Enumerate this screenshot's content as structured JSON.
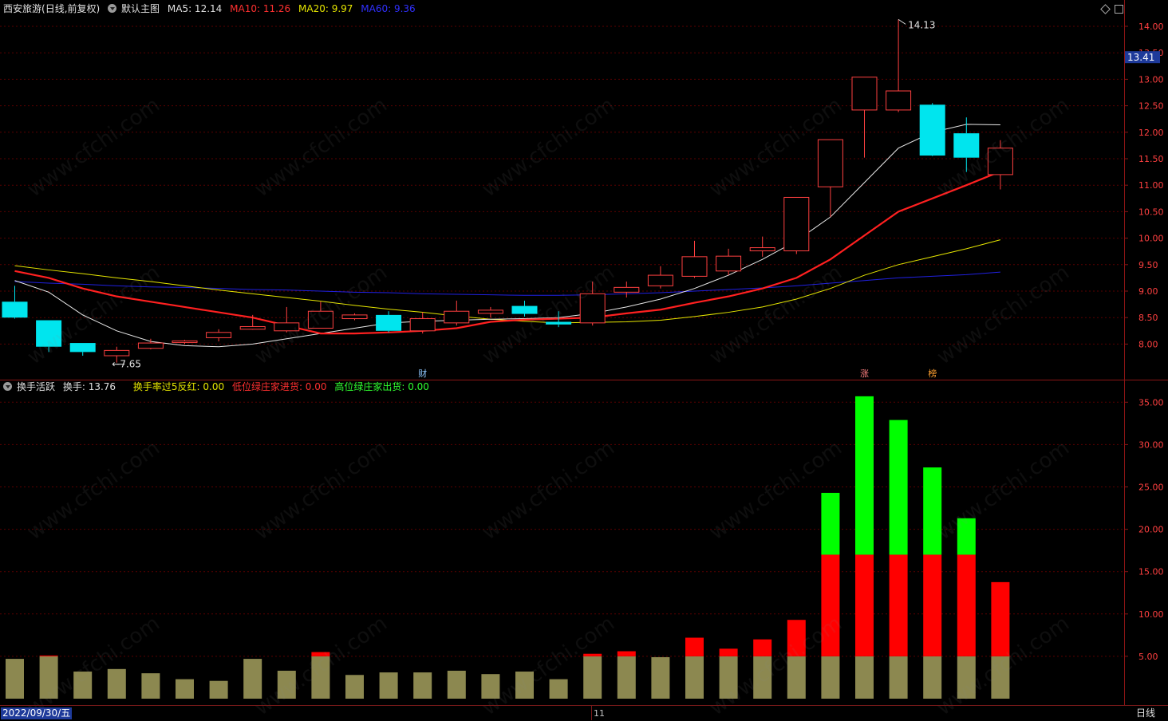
{
  "main_header": {
    "stock_name": "西安旅游",
    "period_info": "(日线,前复权)",
    "template_label": "默认主图",
    "ma5": "MA5: 12.14",
    "ma10": "MA10: 11.26",
    "ma20": "MA20: 9.97",
    "ma60": "MA60: 9.36"
  },
  "indicator_header": {
    "indicator_name": "换手活跃",
    "turnover": "换手: 13.76",
    "line1": "换手率过5反红: 0.00",
    "line2": "低位绿庄家进货: 0.00",
    "line3": "高位绿庄家出货: 0.00"
  },
  "colors": {
    "background": "#000000",
    "grid": "#5a0000",
    "axis": "#8a1515",
    "up_candle": "#ff4040",
    "down_candle": "#00e5ee",
    "ma5": "#e8e8e8",
    "ma10": "#ff2020",
    "ma20": "#e6e600",
    "ma60": "#2020e0",
    "vol_base": "#8c8850",
    "vol_red": "#ff0000",
    "vol_green": "#00ff00",
    "price_badge_bg": "#1e3a9a"
  },
  "price_axis": {
    "ticks": [
      "14.00",
      "13.50",
      "13.00",
      "12.50",
      "12.00",
      "11.50",
      "11.00",
      "10.50",
      "10.00",
      "9.50",
      "9.00",
      "8.50",
      "8.00"
    ],
    "current_price": "13.41",
    "high_label": "14.13",
    "low_label": "7.65"
  },
  "volume_axis": {
    "ticks": [
      "35.00",
      "30.00",
      "25.00",
      "20.00",
      "15.00",
      "10.00",
      "5.00"
    ]
  },
  "event_markers": [
    "财",
    "涨",
    "榜"
  ],
  "bottom_bar": {
    "date": "2022/09/30/五",
    "month": "11",
    "period": "日线"
  },
  "watermark": "www.cfchi.com",
  "chart_data": [
    {
      "type": "candlestick",
      "title": "西安旅游 (日线,前复权)",
      "y_range": [
        7.3,
        14.35
      ],
      "candles": [
        {
          "o": 8.8,
          "c": 8.5,
          "h": 9.1,
          "l": 8.48
        },
        {
          "o": 8.45,
          "c": 7.95,
          "h": 8.45,
          "l": 7.85
        },
        {
          "o": 8.02,
          "c": 7.85,
          "h": 8.02,
          "l": 7.78
        },
        {
          "o": 7.78,
          "c": 7.88,
          "h": 7.95,
          "l": 7.65
        },
        {
          "o": 7.92,
          "c": 8.02,
          "h": 8.1,
          "l": 7.9
        },
        {
          "o": 8.03,
          "c": 8.06,
          "h": 8.08,
          "l": 8.0
        },
        {
          "o": 8.12,
          "c": 8.22,
          "h": 8.28,
          "l": 8.05
        },
        {
          "o": 8.28,
          "c": 8.33,
          "h": 8.55,
          "l": 8.27
        },
        {
          "o": 8.25,
          "c": 8.4,
          "h": 8.7,
          "l": 8.22
        },
        {
          "o": 8.3,
          "c": 8.62,
          "h": 8.8,
          "l": 8.3
        },
        {
          "o": 8.48,
          "c": 8.55,
          "h": 8.58,
          "l": 8.45
        },
        {
          "o": 8.55,
          "c": 8.25,
          "h": 8.62,
          "l": 8.22
        },
        {
          "o": 8.25,
          "c": 8.48,
          "h": 8.6,
          "l": 8.2
        },
        {
          "o": 8.4,
          "c": 8.62,
          "h": 8.82,
          "l": 8.35
        },
        {
          "o": 8.58,
          "c": 8.64,
          "h": 8.7,
          "l": 8.5
        },
        {
          "o": 8.72,
          "c": 8.57,
          "h": 8.82,
          "l": 8.52
        },
        {
          "o": 8.42,
          "c": 8.37,
          "h": 8.62,
          "l": 8.32
        },
        {
          "o": 8.4,
          "c": 8.95,
          "h": 9.18,
          "l": 8.35
        },
        {
          "o": 8.98,
          "c": 9.07,
          "h": 9.18,
          "l": 8.88
        },
        {
          "o": 9.1,
          "c": 9.3,
          "h": 9.47,
          "l": 9.05
        },
        {
          "o": 9.28,
          "c": 9.65,
          "h": 9.95,
          "l": 9.25
        },
        {
          "o": 9.38,
          "c": 9.66,
          "h": 9.8,
          "l": 9.3
        },
        {
          "o": 9.76,
          "c": 9.82,
          "h": 10.03,
          "l": 9.65
        },
        {
          "o": 9.76,
          "c": 10.77,
          "h": 10.77,
          "l": 9.7
        },
        {
          "o": 10.97,
          "c": 11.86,
          "h": 11.86,
          "l": 10.4
        },
        {
          "o": 12.42,
          "c": 13.04,
          "h": 13.04,
          "l": 11.52
        },
        {
          "o": 12.42,
          "c": 12.78,
          "h": 14.13,
          "l": 12.38
        },
        {
          "o": 12.52,
          "c": 11.56,
          "h": 12.55,
          "l": 11.55
        },
        {
          "o": 11.98,
          "c": 11.52,
          "h": 12.28,
          "l": 11.25
        },
        {
          "o": 11.2,
          "c": 11.7,
          "h": 11.85,
          "l": 10.92
        }
      ],
      "ma5": [
        9.2,
        8.98,
        8.55,
        8.25,
        8.05,
        7.97,
        7.95,
        8.0,
        8.1,
        8.2,
        8.3,
        8.4,
        8.43,
        8.45,
        8.47,
        8.48,
        8.5,
        8.58,
        8.7,
        8.85,
        9.05,
        9.3,
        9.6,
        9.95,
        10.4,
        11.05,
        11.7,
        12.0,
        12.15,
        12.14
      ],
      "ma10": [
        9.38,
        9.25,
        9.05,
        8.9,
        8.8,
        8.7,
        8.6,
        8.5,
        8.35,
        8.2,
        8.2,
        8.22,
        8.25,
        8.3,
        8.42,
        8.46,
        8.48,
        8.5,
        8.58,
        8.65,
        8.78,
        8.9,
        9.05,
        9.25,
        9.6,
        10.05,
        10.5,
        10.75,
        11.0,
        11.26
      ],
      "ma20": [
        9.48,
        9.4,
        9.33,
        9.25,
        9.18,
        9.1,
        9.02,
        8.95,
        8.88,
        8.81,
        8.73,
        8.66,
        8.6,
        8.53,
        8.47,
        8.43,
        8.4,
        8.41,
        8.42,
        8.45,
        8.52,
        8.6,
        8.7,
        8.85,
        9.05,
        9.3,
        9.5,
        9.65,
        9.8,
        9.97
      ],
      "ma60": [
        9.18,
        9.15,
        9.13,
        9.1,
        9.08,
        9.07,
        9.05,
        9.03,
        9.02,
        9.0,
        8.98,
        8.97,
        8.95,
        8.94,
        8.93,
        8.92,
        8.92,
        8.93,
        8.95,
        8.97,
        9.0,
        9.03,
        9.06,
        9.1,
        9.15,
        9.2,
        9.25,
        9.28,
        9.31,
        9.36
      ]
    },
    {
      "type": "bar",
      "title": "换手活跃",
      "y_range": [
        0,
        36.8
      ],
      "series": [
        {
          "name": "换手",
          "values": [
            4.7,
            5.1,
            3.2,
            3.5,
            3.0,
            2.3,
            2.1,
            4.7,
            3.3,
            5.5,
            2.8,
            3.1,
            3.1,
            3.3,
            2.9,
            3.2,
            2.3,
            5.3,
            5.6,
            4.9,
            7.2,
            5.9,
            7.0,
            9.3,
            24.3,
            35.7,
            32.9,
            27.3,
            21.3,
            13.76
          ]
        }
      ],
      "red_threshold": 5,
      "green_threshold": 17
    }
  ]
}
